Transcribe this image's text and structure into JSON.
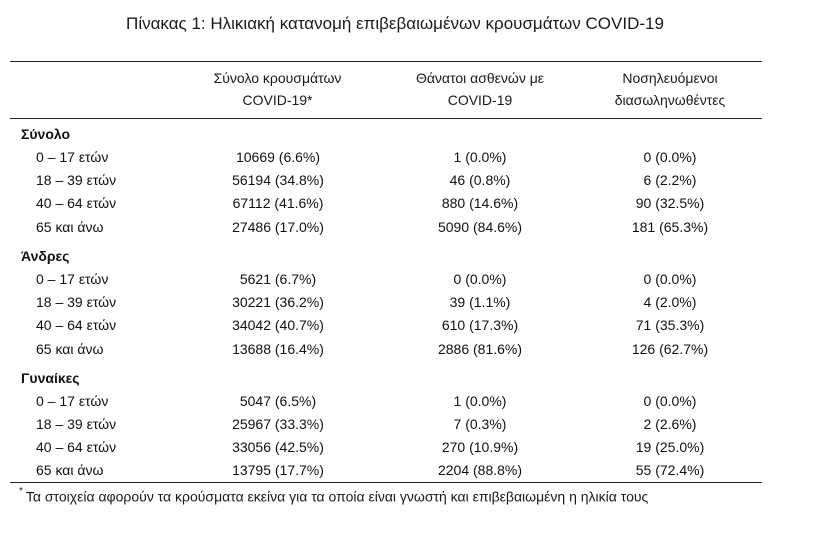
{
  "title": "Πίνακας 1: Ηλικιακή κατανομή επιβεβαιωμένων κρουσμάτων COVID-19",
  "headers": {
    "col1_line1": "Σύνολο κρουσμάτων",
    "col1_line2": "COVID-19*",
    "col2_line1": "Θάνατοι ασθενών με",
    "col2_line2": "COVID-19",
    "col3_line1": "Νοσηλευόμενοι",
    "col3_line2": "διασωληνωθέντες"
  },
  "groups": [
    {
      "name": "Σύνολο",
      "rows": [
        {
          "age": "0 – 17 ετών",
          "cases": "10669 (6.6%)",
          "deaths": "1 (0.0%)",
          "intubated": "0 (0.0%)"
        },
        {
          "age": "18 – 39 ετών",
          "cases": "56194 (34.8%)",
          "deaths": "46 (0.8%)",
          "intubated": "6 (2.2%)"
        },
        {
          "age": "40 – 64 ετών",
          "cases": "67112 (41.6%)",
          "deaths": "880 (14.6%)",
          "intubated": "90 (32.5%)"
        },
        {
          "age": "65 και άνω",
          "cases": "27486 (17.0%)",
          "deaths": "5090 (84.6%)",
          "intubated": "181 (65.3%)"
        }
      ]
    },
    {
      "name": "Άνδρες",
      "rows": [
        {
          "age": "0 – 17 ετών",
          "cases": "5621 (6.7%)",
          "deaths": "0 (0.0%)",
          "intubated": "0 (0.0%)"
        },
        {
          "age": "18 – 39 ετών",
          "cases": "30221 (36.2%)",
          "deaths": "39 (1.1%)",
          "intubated": "4 (2.0%)"
        },
        {
          "age": "40 – 64 ετών",
          "cases": "34042 (40.7%)",
          "deaths": "610 (17.3%)",
          "intubated": "71 (35.3%)"
        },
        {
          "age": "65 και άνω",
          "cases": "13688 (16.4%)",
          "deaths": "2886 (81.6%)",
          "intubated": "126 (62.7%)"
        }
      ]
    },
    {
      "name": "Γυναίκες",
      "rows": [
        {
          "age": "0 – 17 ετών",
          "cases": "5047 (6.5%)",
          "deaths": "1 (0.0%)",
          "intubated": "0 (0.0%)"
        },
        {
          "age": "18 – 39 ετών",
          "cases": "25967 (33.3%)",
          "deaths": "7 (0.3%)",
          "intubated": "2 (2.6%)"
        },
        {
          "age": "40 – 64 ετών",
          "cases": "33056 (42.5%)",
          "deaths": "270 (10.9%)",
          "intubated": "19 (25.0%)"
        },
        {
          "age": "65 και άνω",
          "cases": "13795 (17.7%)",
          "deaths": "2204 (88.8%)",
          "intubated": "55 (72.4%)"
        }
      ]
    }
  ],
  "footnote": {
    "mark": "*",
    "text": "Τα στοιχεία αφορούν τα κρούσματα εκείνα για τα οποία είναι γνωστή και επιβεβαιωμένη η ηλικία τους"
  }
}
